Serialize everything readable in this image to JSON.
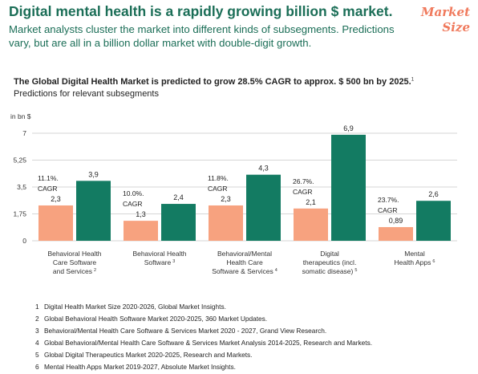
{
  "headline": "Digital mental health is a rapidly growing billion $ market.",
  "badge": [
    "Market",
    "Size"
  ],
  "intro": "Market analysts cluster the market into different kinds of subsegments. Predictions vary, but are all in a billion dollar market with double-digit growth.",
  "colors": {
    "green": "#137b62",
    "salmon": "#f7a27f",
    "headline": "#1b6e57",
    "badge": "#f07a5d"
  },
  "chart_data": {
    "type": "bar",
    "title": "The Global Digital Health Market is predicted to grow 28.5% CAGR to approx. $ 500 bn by 2025.",
    "title_ref": "1",
    "subtitle": "Predictions for relevant subsegments",
    "ylabel": "in bn $",
    "ylim": [
      0,
      7
    ],
    "yticks": [
      "0",
      "1,75",
      "3,5",
      "5,25",
      "7"
    ],
    "grid": true,
    "categories": [
      {
        "lines": [
          "Behavioral Health",
          "Care Software",
          "and Services"
        ],
        "ref": "2"
      },
      {
        "lines": [
          "Behavioral Health",
          "Software"
        ],
        "ref": "3"
      },
      {
        "lines": [
          "Behavioral/Mental",
          "Health Care",
          "Software & Services"
        ],
        "ref": "4"
      },
      {
        "lines": [
          "Digital",
          "therapeutics (incl.",
          "somatic disease)"
        ],
        "ref": "5"
      },
      {
        "lines": [
          "Mental",
          "Health Apps"
        ],
        "ref": "6"
      }
    ],
    "series": [
      {
        "values": [
          2.3,
          1.3,
          2.3,
          2.1,
          0.89
        ],
        "labels": [
          "2,3",
          "1,3",
          "2,3",
          "2,1",
          "0,89"
        ],
        "color": "#f7a27f"
      },
      {
        "values": [
          3.9,
          2.4,
          4.3,
          6.9,
          2.6
        ],
        "labels": [
          "3,9",
          "2,4",
          "4,3",
          "6,9",
          "2,6"
        ],
        "color": "#137b62"
      }
    ],
    "cagr": [
      "11.1%.",
      "10.0%.",
      "11.8%.",
      "26.7%.",
      "23.7%."
    ],
    "cagr_label": "CAGR"
  },
  "footnotes": [
    {
      "num": "1",
      "text": "Digital Health Market Size 2020-2026, Global Market Insights."
    },
    {
      "num": "2",
      "text": "Global Behavioral Health Software Market 2020-2025, 360 Market Updates."
    },
    {
      "num": "3",
      "text": "Behavioral/Mental Health Care Software & Services Market 2020 - 2027, Grand View Research."
    },
    {
      "num": "4",
      "text": "Global Behavioral/Mental Health Care Software & Services Market Analysis 2014-2025, Research and Markets."
    },
    {
      "num": "5",
      "text": "Global Digital Therapeutics Market 2020-2025, Research and Markets."
    },
    {
      "num": "6",
      "text": "Mental Health Apps Market 2019-2027, Absolute Market Insights."
    }
  ]
}
